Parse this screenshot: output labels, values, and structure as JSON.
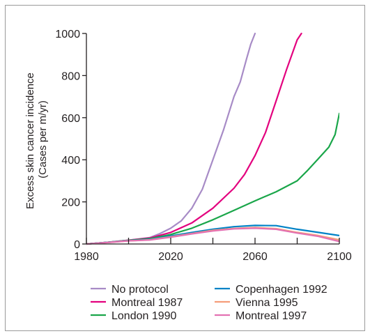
{
  "chart_data": {
    "type": "line",
    "title": "",
    "xlabel": "",
    "ylabel_lines": [
      "Excess skin cancer incidence",
      "(Cases per m/yr)"
    ],
    "xlim": [
      1980,
      2100
    ],
    "ylim": [
      0,
      1000
    ],
    "x_ticks": [
      1980,
      2020,
      2060,
      2100
    ],
    "x_minor_ticks": [
      2000,
      2040,
      2080
    ],
    "y_ticks": [
      0,
      200,
      400,
      600,
      800,
      1000
    ],
    "x_tick_labels": [
      "1980",
      "2020",
      "2060",
      "2100"
    ],
    "y_tick_labels": [
      "0",
      "200",
      "400",
      "600",
      "800",
      "1000"
    ],
    "grid": false,
    "legend_position": "bottom",
    "series": [
      {
        "name": "No protocol",
        "color": "#a78bc6",
        "x": [
          1980,
          1990,
          2000,
          2010,
          2015,
          2020,
          2025,
          2030,
          2035,
          2040,
          2045,
          2050,
          2053,
          2056,
          2058,
          2060
        ],
        "y": [
          0,
          8,
          18,
          30,
          50,
          75,
          110,
          170,
          260,
          400,
          540,
          700,
          770,
          880,
          950,
          1000
        ]
      },
      {
        "name": "Montreal 1987",
        "color": "#e3007e",
        "x": [
          1980,
          1990,
          2000,
          2010,
          2020,
          2030,
          2040,
          2050,
          2055,
          2060,
          2065,
          2070,
          2075,
          2080,
          2082
        ],
        "y": [
          0,
          8,
          18,
          28,
          55,
          100,
          170,
          265,
          330,
          420,
          530,
          680,
          830,
          970,
          1000
        ]
      },
      {
        "name": "London 1990",
        "color": "#1aa64a",
        "x": [
          1980,
          1990,
          2000,
          2010,
          2020,
          2030,
          2040,
          2050,
          2060,
          2070,
          2080,
          2085,
          2090,
          2095,
          2098,
          2100
        ],
        "y": [
          0,
          8,
          17,
          25,
          45,
          75,
          115,
          160,
          205,
          248,
          300,
          350,
          405,
          460,
          520,
          620
        ]
      },
      {
        "name": "Copenhagen 1992",
        "color": "#0082c6",
        "x": [
          1980,
          1990,
          2000,
          2010,
          2020,
          2030,
          2040,
          2050,
          2060,
          2070,
          2080,
          2090,
          2100
        ],
        "y": [
          0,
          8,
          16,
          22,
          38,
          55,
          70,
          82,
          88,
          87,
          70,
          55,
          40
        ]
      },
      {
        "name": "Vienna 1995",
        "color": "#f59d7a",
        "x": [
          1980,
          1990,
          2000,
          2010,
          2020,
          2030,
          2040,
          2050,
          2060,
          2070,
          2080,
          2090,
          2100
        ],
        "y": [
          0,
          7,
          15,
          20,
          34,
          50,
          65,
          74,
          78,
          73,
          55,
          40,
          20
        ]
      },
      {
        "name": "Montreal 1997",
        "color": "#e371b2",
        "x": [
          1980,
          1990,
          2000,
          2010,
          2020,
          2030,
          2040,
          2050,
          2060,
          2070,
          2080,
          2090,
          2100
        ],
        "y": [
          0,
          7,
          15,
          19,
          32,
          48,
          62,
          72,
          75,
          70,
          52,
          36,
          12
        ]
      }
    ]
  }
}
